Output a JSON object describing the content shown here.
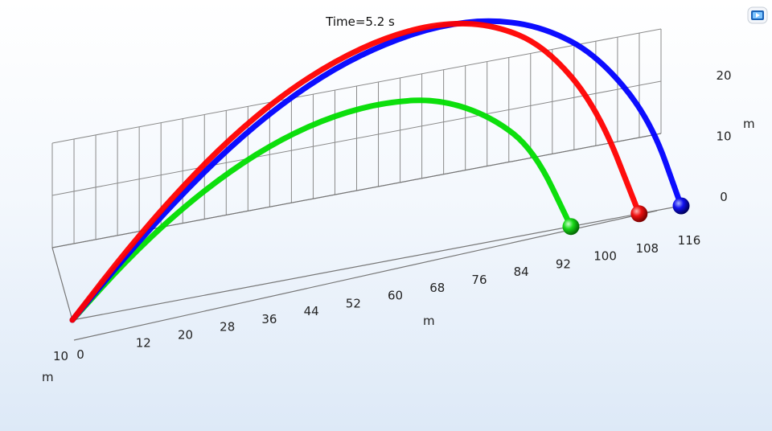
{
  "toolbar": {
    "icon": "play-animation-icon",
    "accent": "#1a63b8"
  },
  "chart_data": {
    "type": "line",
    "projection": "3d",
    "title": "Time=5.2 s",
    "x_axis": {
      "label": "m",
      "ticks": [
        0,
        12,
        20,
        28,
        36,
        44,
        52,
        60,
        68,
        76,
        84,
        92,
        100,
        108,
        116
      ],
      "range": [
        0,
        116
      ]
    },
    "y_axis": {
      "label": "m",
      "ticks": [
        10
      ],
      "range": [
        0,
        10
      ]
    },
    "z_axis": {
      "label": "m",
      "ticks": [
        0,
        10,
        20
      ],
      "range": [
        0,
        22
      ]
    },
    "series": [
      {
        "color": "#ff0000",
        "x": [
          0,
          10,
          20,
          30,
          40,
          50,
          60,
          70,
          80,
          90,
          100,
          108
        ],
        "z": [
          0,
          4.8,
          9.0,
          12.6,
          15.4,
          17.4,
          18.6,
          18.9,
          18.0,
          15.4,
          9.5,
          0
        ]
      },
      {
        "color": "#0000ff",
        "x": [
          0,
          10,
          20,
          30,
          40,
          50,
          60,
          70,
          80,
          90,
          100,
          110,
          116
        ],
        "z": [
          0,
          4.4,
          8.4,
          11.9,
          14.7,
          16.8,
          18.1,
          18.7,
          18.4,
          16.9,
          13.8,
          7.8,
          0
        ]
      },
      {
        "color": "#00dd00",
        "x": [
          0,
          10,
          20,
          30,
          40,
          50,
          60,
          70,
          80,
          88,
          95
        ],
        "z": [
          0,
          4.0,
          7.3,
          9.9,
          11.8,
          12.9,
          13.2,
          12.6,
          10.3,
          6.9,
          0
        ]
      }
    ]
  }
}
